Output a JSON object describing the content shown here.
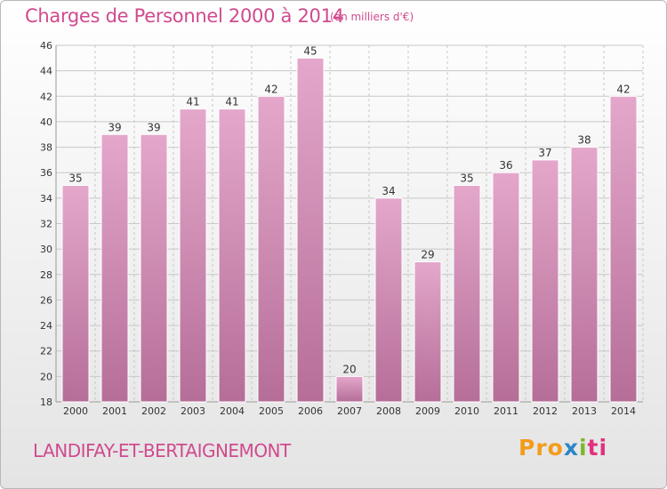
{
  "header": {
    "title": "Charges de Personnel 2000 à 2014",
    "subtitle": "(en milliers d'€)"
  },
  "footer": {
    "commune": "LANDIFAY-ET-BERTAIGNEMONT",
    "logo": {
      "p1": "Pro",
      "p2": "x",
      "p3": "i",
      "p4": "ti"
    }
  },
  "colors": {
    "title": "#d04a8e",
    "bar_top": "#e4a7cb",
    "bar_bottom": "#b56e98",
    "grid": "#c8c8c8",
    "axis_text": "#333333"
  },
  "chart_data": {
    "type": "bar",
    "categories": [
      "2000",
      "2001",
      "2002",
      "2003",
      "2004",
      "2005",
      "2006",
      "2007",
      "2008",
      "2009",
      "2010",
      "2011",
      "2012",
      "2013",
      "2014"
    ],
    "values": [
      35,
      39,
      39,
      41,
      41,
      42,
      45,
      20,
      34,
      29,
      35,
      36,
      37,
      38,
      42
    ],
    "ylim": [
      18,
      46
    ],
    "yticks": [
      18,
      20,
      22,
      24,
      26,
      28,
      30,
      32,
      34,
      36,
      38,
      40,
      42,
      44,
      46
    ],
    "grid": true,
    "data_labels": true
  }
}
